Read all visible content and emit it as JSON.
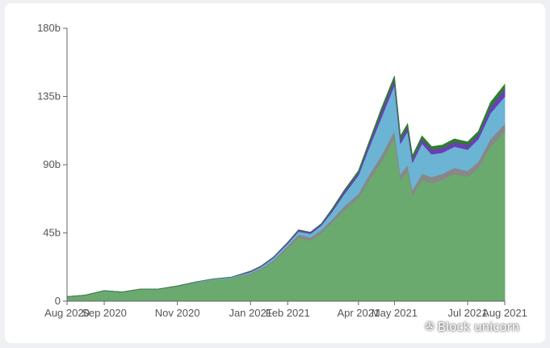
{
  "chart_data": {
    "type": "area",
    "stacked": true,
    "title": "",
    "xlabel": "",
    "ylabel": "",
    "ylim": [
      0,
      180
    ],
    "yticks": [
      {
        "value": 0,
        "label": "0"
      },
      {
        "value": 45,
        "label": "45b"
      },
      {
        "value": 90,
        "label": "90b"
      },
      {
        "value": 135,
        "label": "135b"
      },
      {
        "value": 180,
        "label": "180b"
      }
    ],
    "xticks": [
      {
        "value": "2020-08-01",
        "label": "Aug 2020"
      },
      {
        "value": "2020-09-01",
        "label": "Sep 2020"
      },
      {
        "value": "2020-11-01",
        "label": "Nov 2020"
      },
      {
        "value": "2021-01-01",
        "label": "Jan 2021"
      },
      {
        "value": "2021-02-01",
        "label": "Feb 2021"
      },
      {
        "value": "2021-04-01",
        "label": "Apr 2021"
      },
      {
        "value": "2021-05-01",
        "label": "May 2021"
      },
      {
        "value": "2021-07-01",
        "label": "Jul 2021"
      },
      {
        "value": "2021-08-01",
        "label": "Aug 2021"
      }
    ],
    "xlim": [
      "2020-08-01",
      "2021-08-01"
    ],
    "x": [
      "2020-08-01",
      "2020-08-16",
      "2020-09-01",
      "2020-09-16",
      "2020-10-01",
      "2020-10-16",
      "2020-11-01",
      "2020-11-16",
      "2020-12-01",
      "2020-12-16",
      "2021-01-01",
      "2021-01-10",
      "2021-01-20",
      "2021-02-01",
      "2021-02-10",
      "2021-02-20",
      "2021-03-01",
      "2021-03-10",
      "2021-03-20",
      "2021-04-01",
      "2021-04-10",
      "2021-04-20",
      "2021-05-01",
      "2021-05-06",
      "2021-05-12",
      "2021-05-16",
      "2021-05-24",
      "2021-06-01",
      "2021-06-10",
      "2021-06-20",
      "2021-07-01",
      "2021-07-10",
      "2021-07-20",
      "2021-08-01"
    ],
    "series": [
      {
        "color": "#6aaa6e",
        "values": [
          3,
          4,
          7,
          6,
          8,
          8,
          10,
          12,
          14,
          15,
          18,
          21,
          26,
          35,
          42,
          40,
          45,
          52,
          60,
          68,
          80,
          92,
          108,
          80,
          86,
          70,
          80,
          78,
          80,
          84,
          82,
          88,
          102,
          112
        ]
      },
      {
        "color": "#888888",
        "values": [
          0,
          0,
          0,
          0,
          0,
          0,
          0,
          0.2,
          0.2,
          0.3,
          0.5,
          0.8,
          1,
          1.5,
          2,
          2,
          2,
          2,
          2.5,
          3,
          3.5,
          4,
          4.5,
          4,
          4,
          3.5,
          4,
          4,
          4,
          4,
          4,
          4,
          5,
          5
        ]
      },
      {
        "color": "#6bb4d4",
        "values": [
          0,
          0,
          0,
          0,
          0,
          0,
          0,
          0.4,
          0.5,
          0.5,
          0.8,
          1,
          1.5,
          1.5,
          2,
          2.5,
          3,
          5,
          8,
          12,
          18,
          25,
          30,
          20,
          22,
          18,
          20,
          15,
          14,
          14,
          14,
          15,
          17,
          18
        ]
      },
      {
        "color": "#6a3fb5",
        "values": [
          0,
          0,
          0,
          0,
          0,
          0,
          0,
          0,
          0,
          0,
          0.5,
          0.5,
          0.5,
          0.8,
          1,
          1,
          1,
          1.5,
          2,
          2,
          3,
          4,
          4,
          3,
          3,
          2.5,
          3,
          3,
          3,
          3,
          3,
          3,
          4,
          5
        ]
      },
      {
        "color": "#2e7d32",
        "values": [
          0,
          0,
          0,
          0,
          0,
          0,
          0,
          0,
          0,
          0,
          0,
          0,
          0,
          0,
          0,
          0,
          0,
          0.5,
          0.5,
          1,
          1,
          2,
          2,
          2,
          2,
          2,
          2,
          2,
          2,
          2,
          2,
          2,
          3,
          3
        ]
      }
    ]
  },
  "watermark": {
    "icon": "wechat-icon",
    "text": "Block unicorn"
  }
}
